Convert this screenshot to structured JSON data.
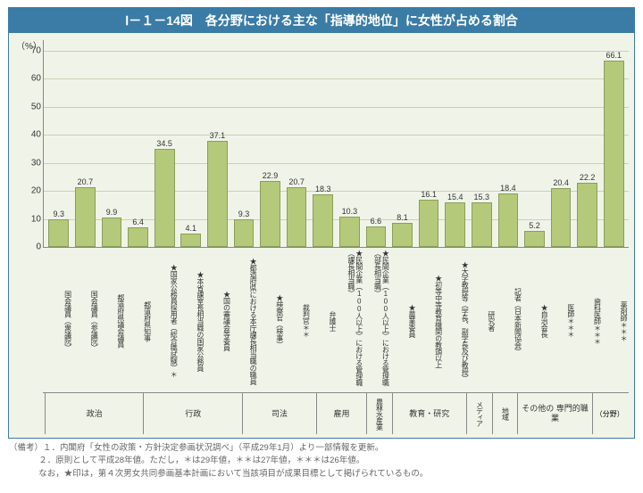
{
  "title": "Ⅰ－１－14図　各分野における主な「指導的地位」に女性が占める割合",
  "y_unit": "（%）",
  "ylim": [
    0,
    70
  ],
  "ytick_step": 10,
  "chart": {
    "type": "bar",
    "bar_color": "#b5c97a",
    "bar_border": "#8a9e5a",
    "background_color": "#f0f4e8",
    "grid_color": "#c8d0b8",
    "title_bg": "#3a7ca5",
    "title_color": "#ffffff"
  },
  "bars": [
    {
      "label": "国会議員（衆議院）",
      "value": 9.3
    },
    {
      "label": "国会議員（参議院）",
      "value": 20.7
    },
    {
      "label": "都道府県議会議員",
      "value": 9.9
    },
    {
      "label": "都道府県知事",
      "value": 6.4
    },
    {
      "label": "★国家公務員採用者（総合職試験）＊",
      "value": 34.5
    },
    {
      "label": "★本省課室長相当職の国家公務員",
      "value": 4.1
    },
    {
      "label": "★国の審議会等委員",
      "value": 37.1
    },
    {
      "label": "★都道府県における本庁課長相当職の職員",
      "value": 9.3
    },
    {
      "label": "★検察官（検事）",
      "value": 22.9
    },
    {
      "label": "裁判官＊＊",
      "value": 20.7
    },
    {
      "label": "弁護士",
      "value": 18.3
    },
    {
      "label": "★民間企業（100人以上）における管理職（課長相当職）",
      "value": 10.3
    },
    {
      "label": "★民間企業（100人以上）における管理職（部長相当職）",
      "value": 6.6
    },
    {
      "label": "★農業委員",
      "value": 8.1
    },
    {
      "label": "★初等中等教育機関の教頭以上",
      "value": 16.1
    },
    {
      "label": "★大学教授等（学長、副学長及び教授）",
      "value": 15.4
    },
    {
      "label": "研究者",
      "value": 15.3
    },
    {
      "label": "記者（日本新聞協会）",
      "value": 18.4
    },
    {
      "label": "★自治会長",
      "value": 5.2
    },
    {
      "label": "医師＊＊＊",
      "value": 20.4
    },
    {
      "label": "歯科医師＊＊＊",
      "value": 22.2
    },
    {
      "label": "薬剤師＊＊＊",
      "value": 66.1
    }
  ],
  "groups": [
    {
      "label": "政治",
      "span": 4
    },
    {
      "label": "行政",
      "span": 4
    },
    {
      "label": "司法",
      "span": 3
    },
    {
      "label": "雇用",
      "span": 2
    },
    {
      "label": "農林水産業",
      "span": 1,
      "vertical": true
    },
    {
      "label": "教育・研究",
      "span": 3
    },
    {
      "label": "メディア",
      "span": 1,
      "vertical": true
    },
    {
      "label": "地域",
      "span": 1,
      "vertical": true
    },
    {
      "label": "その他の\n専門的職業",
      "span": 3
    }
  ],
  "field_suffix": "（分野）",
  "notes": {
    "line1": "（備考）１．内閣府「女性の政策・方針決定参画状況調べ」（平成29年1月）より一部情報を更新。",
    "line2": "２．原則として平成28年値。ただし，＊は29年値，＊＊は27年値，＊＊＊は26年値。",
    "line3": "なお，★印は，第４次男女共同参画基本計画において当該項目が成果目標として掲げられているもの。"
  }
}
